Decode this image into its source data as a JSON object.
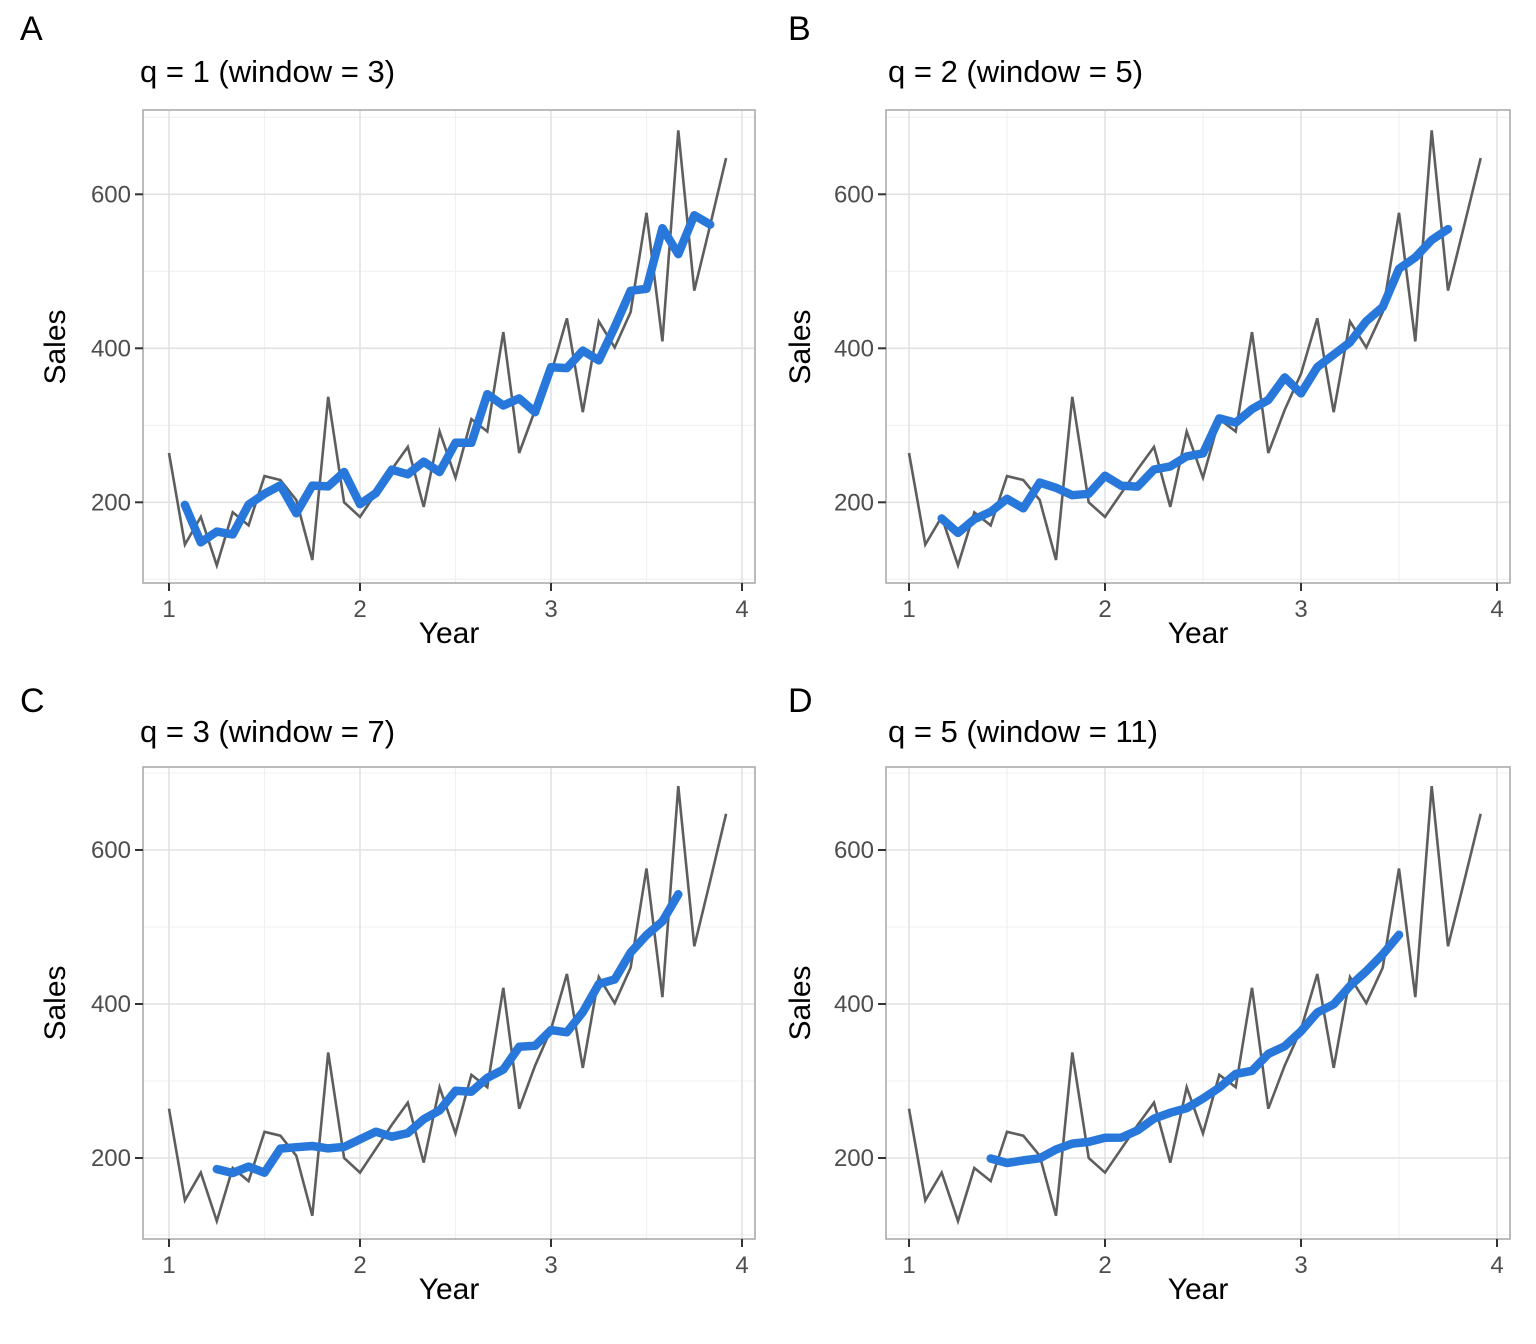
{
  "figure": {
    "background": "#ffffff",
    "xlabel": "Year",
    "ylabel": "Sales",
    "colors": {
      "raw_line": "#5E5E5E",
      "ma_line": "#2878DB",
      "grid_major": "#E2E2E2",
      "grid_minor": "#F0F0F0",
      "panel_border": "#ACACAC",
      "tick_mark": "#333333",
      "tick_label": "#4D4D4D",
      "title_text": "#000000"
    }
  },
  "chart_data": {
    "type": "line",
    "description": "Monthly sales series (gray) with centered moving average smoothers (blue) of window 2q+1",
    "x_rule": "x_i = 1 + (i-1)/12 for i = 1..36 (monthly data over ~3 years)",
    "xlabel": "Year",
    "ylabel": "Sales",
    "x_ticks": [
      1,
      2,
      3,
      4
    ],
    "x_minor_ticks": [
      1.5,
      2.5,
      3.5
    ],
    "y_ticks": [
      200,
      400,
      600
    ],
    "y_minor_ticks": [
      100,
      300,
      500,
      700
    ],
    "x_axis_range": [
      0.86,
      4.07
    ],
    "y_axis_range": [
      95,
      710
    ],
    "grid": "major and minor, light gray on white, bordered panel",
    "legend_position": "none",
    "sales": [
      264,
      145,
      181,
      118,
      187,
      170,
      234,
      229,
      203,
      125,
      337,
      200,
      181,
      212,
      243,
      272,
      194,
      292,
      232,
      308,
      292,
      421,
      264,
      320,
      367,
      439,
      317,
      435,
      401,
      447,
      576,
      409,
      683,
      475,
      560,
      647
    ],
    "smoother": "centered moving average, ma_i = mean(sales[i-q .. i+q]), plotted for i = q+1 .. 36-q",
    "panels": [
      {
        "letter": "A",
        "title": "q = 1 (window = 3)",
        "q": 1,
        "window": 3
      },
      {
        "letter": "B",
        "title": "q = 2 (window = 5)",
        "q": 2,
        "window": 5
      },
      {
        "letter": "C",
        "title": "q = 3 (window = 7)",
        "q": 3,
        "window": 7
      },
      {
        "letter": "D",
        "title": "q = 5 (window = 11)",
        "q": 5,
        "window": 11
      }
    ]
  }
}
